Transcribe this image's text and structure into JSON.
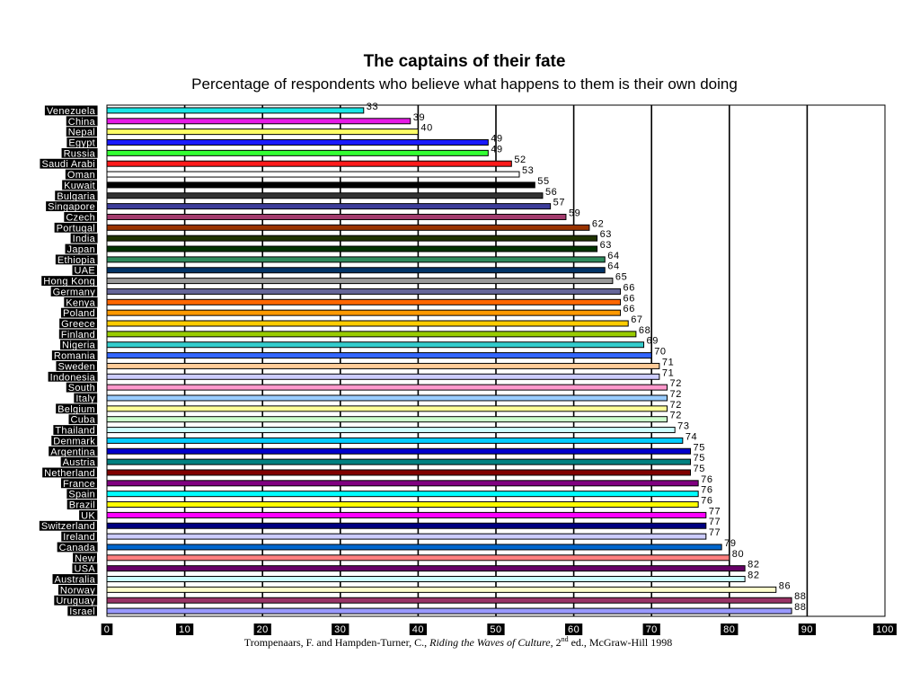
{
  "chart_data": {
    "type": "bar",
    "orientation": "horizontal",
    "title": "The captains of their fate",
    "subtitle": "Percentage of respondents who believe what happens to them is their own doing",
    "xlim": [
      0,
      100
    ],
    "x_ticks": [
      0,
      10,
      20,
      30,
      40,
      50,
      60,
      70,
      80,
      90,
      100
    ],
    "grid": "vertical major gridlines",
    "bars": [
      {
        "category": "Venezuela",
        "value": 33,
        "color": "#19e6e6"
      },
      {
        "category": "China",
        "value": 39,
        "color": "#e619e6"
      },
      {
        "category": "Nepal",
        "value": 40,
        "color": "#ffff66"
      },
      {
        "category": "Egypt",
        "value": 49,
        "color": "#1a1aff"
      },
      {
        "category": "Russia",
        "value": 49,
        "color": "#33ff33"
      },
      {
        "category": "Saudi Arabi",
        "value": 52,
        "color": "#ff1a1a"
      },
      {
        "category": "Oman",
        "value": 53,
        "color": "#ffffff"
      },
      {
        "category": "Kuwait",
        "value": 55,
        "color": "#000000"
      },
      {
        "category": "Bulgaria",
        "value": 56,
        "color": "#333333"
      },
      {
        "category": "Singapore",
        "value": 57,
        "color": "#3d3d99"
      },
      {
        "category": "Czech",
        "value": 59,
        "color": "#a33c6e"
      },
      {
        "category": "Portugal",
        "value": 62,
        "color": "#993300"
      },
      {
        "category": "India",
        "value": 63,
        "color": "#1f3300"
      },
      {
        "category": "Japan",
        "value": 63,
        "color": "#003300"
      },
      {
        "category": "Ethiopia",
        "value": 64,
        "color": "#2e8a5c"
      },
      {
        "category": "UAE",
        "value": 64,
        "color": "#003366"
      },
      {
        "category": "Hong Kong",
        "value": 65,
        "color": "#999999"
      },
      {
        "category": "Germany",
        "value": 66,
        "color": "#666699"
      },
      {
        "category": "Kenya",
        "value": 66,
        "color": "#ff6600"
      },
      {
        "category": "Poland",
        "value": 66,
        "color": "#ff9900"
      },
      {
        "category": "Greece",
        "value": 67,
        "color": "#ffcc00"
      },
      {
        "category": "Finland",
        "value": 68,
        "color": "#99cc00"
      },
      {
        "category": "Nigeria",
        "value": 69,
        "color": "#33cccc"
      },
      {
        "category": "Romania",
        "value": 70,
        "color": "#3366ff"
      },
      {
        "category": "Sweden",
        "value": 71,
        "color": "#ffcc99"
      },
      {
        "category": "Indonesia",
        "value": 71,
        "color": "#ccccff"
      },
      {
        "category": "South",
        "value": 72,
        "color": "#ff99cc"
      },
      {
        "category": "Italy",
        "value": 72,
        "color": "#99ccff"
      },
      {
        "category": "Belgium",
        "value": 72,
        "color": "#ffff99"
      },
      {
        "category": "Cuba",
        "value": 72,
        "color": "#ccffcc"
      },
      {
        "category": "Thailand",
        "value": 73,
        "color": "#ccffff"
      },
      {
        "category": "Denmark",
        "value": 74,
        "color": "#00ccff"
      },
      {
        "category": "Argentina",
        "value": 75,
        "color": "#0000cc"
      },
      {
        "category": "Austria",
        "value": 75,
        "color": "#008080"
      },
      {
        "category": "Netherland",
        "value": 75,
        "color": "#800000"
      },
      {
        "category": "France",
        "value": 76,
        "color": "#800080"
      },
      {
        "category": "Spain",
        "value": 76,
        "color": "#00ffff"
      },
      {
        "category": "Brazil",
        "value": 76,
        "color": "#ffff00"
      },
      {
        "category": "UK",
        "value": 77,
        "color": "#ff00ff"
      },
      {
        "category": "Switzerland",
        "value": 77,
        "color": "#000080"
      },
      {
        "category": "Ireland",
        "value": 77,
        "color": "#ccccff"
      },
      {
        "category": "Canada",
        "value": 79,
        "color": "#0066cc"
      },
      {
        "category": "New",
        "value": 80,
        "color": "#ff8080"
      },
      {
        "category": "USA",
        "value": 82,
        "color": "#660066"
      },
      {
        "category": "Australia",
        "value": 82,
        "color": "#ccffff"
      },
      {
        "category": "Norway",
        "value": 86,
        "color": "#ffffcc"
      },
      {
        "category": "Uruguay",
        "value": 88,
        "color": "#993366"
      },
      {
        "category": "Israel",
        "value": 88,
        "color": "#9999ff"
      }
    ]
  },
  "source": {
    "prefix": "Trompenaars, F. and  Hampden-Turner, C., ",
    "book": "Riding the Waves of Culture",
    "edition_num": ", 2",
    "edition_sup": "nd",
    "suffix": " ed., McGraw-Hill 1998"
  }
}
